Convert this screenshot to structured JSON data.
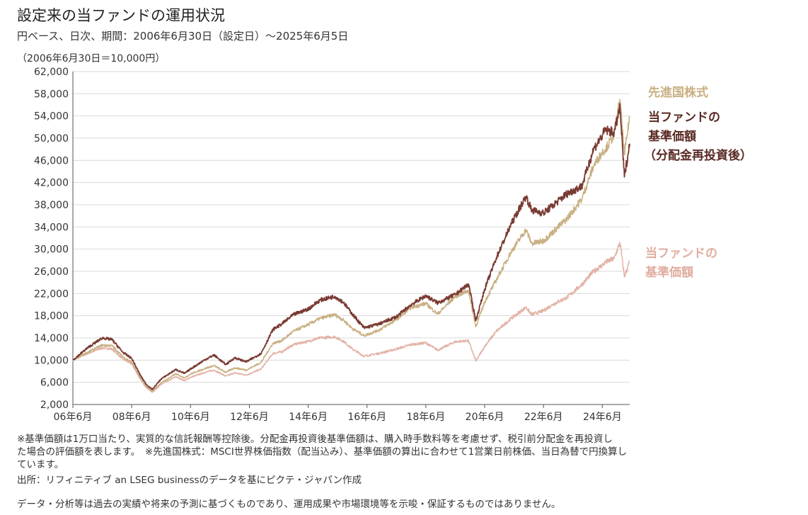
{
  "header": {
    "title": "設定来の当ファンドの運用状況",
    "subtitle": "円ベース、日次、期間：2006年6月30日（設定日）～2025年6月5日",
    "axis_note": "（2006年6月30日＝10,000円）"
  },
  "legend": {
    "developed_stocks": "先進国株式",
    "nav_reinvested_1": "当ファンドの",
    "nav_reinvested_2": "基準価額",
    "nav_reinvested_3": "（分配金再投資後）",
    "nav_1": "当ファンドの",
    "nav_2": "基準価額"
  },
  "colors": {
    "developed_stocks": "#c9b083",
    "nav_reinvested": "#7a3b33",
    "nav": "#e2b3a6",
    "grid": "#d9d9d9",
    "axis": "#555555"
  },
  "chart_data": {
    "type": "line",
    "title": "設定来の当ファンドの運用状況",
    "ylim": [
      2000,
      62000
    ],
    "y_ticks": [
      2000,
      6000,
      10000,
      14000,
      18000,
      22000,
      26000,
      30000,
      34000,
      38000,
      42000,
      46000,
      50000,
      54000,
      58000,
      62000
    ],
    "y_tick_labels": [
      "2,000",
      "6,000",
      "10,000",
      "14,000",
      "18,000",
      "22,000",
      "26,000",
      "30,000",
      "34,000",
      "38,000",
      "42,000",
      "46,000",
      "50,000",
      "54,000",
      "58,000",
      "62,000"
    ],
    "x_ticks": [
      2006.5,
      2008.5,
      2010.5,
      2012.5,
      2014.5,
      2016.5,
      2018.5,
      2020.5,
      2022.5,
      2024.5
    ],
    "x_tick_labels": [
      "06年6月",
      "08年6月",
      "10年6月",
      "12年6月",
      "14年6月",
      "16年6月",
      "18年6月",
      "20年6月",
      "22年6月",
      "24年6月"
    ],
    "xlim": [
      2006.5,
      2025.43
    ],
    "grid": "horizontal",
    "legend_position": "right",
    "series": [
      {
        "name": "当ファンドの基準価額",
        "key": "nav",
        "x": [
          2006.5,
          2007.0,
          2007.5,
          2007.83,
          2008.2,
          2008.5,
          2008.8,
          2009.0,
          2009.2,
          2009.5,
          2010.0,
          2010.3,
          2010.5,
          2011.0,
          2011.3,
          2011.7,
          2012.0,
          2012.4,
          2012.9,
          2013.3,
          2013.6,
          2014.0,
          2014.5,
          2014.9,
          2015.4,
          2015.7,
          2016.0,
          2016.4,
          2016.9,
          2017.5,
          2018.0,
          2018.5,
          2018.9,
          2019.5,
          2019.95,
          2020.2,
          2020.5,
          2020.9,
          2021.4,
          2021.9,
          2022.1,
          2022.5,
          2022.8,
          2023.3,
          2023.8,
          2024.2,
          2024.5,
          2024.6,
          2024.9,
          2025.1,
          2025.25,
          2025.43
        ],
        "y": [
          10000,
          11200,
          12200,
          12000,
          10200,
          9300,
          6500,
          5000,
          4200,
          5600,
          7000,
          6300,
          6900,
          7800,
          8200,
          7100,
          7700,
          7300,
          8400,
          11200,
          11500,
          12800,
          13400,
          14000,
          14200,
          13400,
          12000,
          10700,
          11200,
          12000,
          12800,
          13100,
          11800,
          13300,
          13500,
          9800,
          12500,
          15200,
          17500,
          19500,
          18200,
          18900,
          20000,
          21300,
          23600,
          26000,
          27100,
          27600,
          28300,
          31200,
          25000,
          27800
        ]
      },
      {
        "name": "先進国株式",
        "key": "developed_stocks",
        "x": [
          2006.5,
          2007.0,
          2007.5,
          2007.83,
          2008.2,
          2008.5,
          2008.8,
          2009.0,
          2009.2,
          2009.5,
          2010.0,
          2010.3,
          2010.5,
          2011.0,
          2011.3,
          2011.7,
          2012.0,
          2012.4,
          2012.9,
          2013.3,
          2013.6,
          2014.0,
          2014.5,
          2014.9,
          2015.4,
          2015.7,
          2016.0,
          2016.4,
          2016.9,
          2017.5,
          2018.0,
          2018.5,
          2018.9,
          2019.5,
          2019.95,
          2020.2,
          2020.5,
          2020.9,
          2021.4,
          2021.9,
          2022.1,
          2022.5,
          2022.8,
          2023.3,
          2023.8,
          2024.2,
          2024.5,
          2024.6,
          2024.9,
          2025.1,
          2025.25,
          2025.43
        ],
        "y": [
          10000,
          11400,
          12700,
          12600,
          10600,
          9600,
          6700,
          5200,
          4400,
          5900,
          7500,
          6800,
          7500,
          8500,
          9000,
          7800,
          8600,
          8200,
          9600,
          13000,
          13500,
          15200,
          16400,
          17500,
          18200,
          17200,
          15700,
          14400,
          15400,
          17300,
          19500,
          20200,
          18300,
          21500,
          22500,
          16000,
          20500,
          24500,
          29500,
          33500,
          31000,
          31500,
          33000,
          35500,
          39000,
          45000,
          47500,
          48000,
          50500,
          57000,
          47000,
          54000
        ]
      },
      {
        "name": "当ファンドの基準価額（分配金再投資後）",
        "key": "nav_reinvested",
        "x": [
          2006.5,
          2007.0,
          2007.5,
          2007.83,
          2008.2,
          2008.5,
          2008.8,
          2009.0,
          2009.2,
          2009.5,
          2010.0,
          2010.3,
          2010.5,
          2011.0,
          2011.3,
          2011.7,
          2012.0,
          2012.4,
          2012.9,
          2013.3,
          2013.6,
          2014.0,
          2014.5,
          2014.9,
          2015.4,
          2015.7,
          2016.0,
          2016.4,
          2016.9,
          2017.5,
          2018.0,
          2018.5,
          2018.9,
          2019.5,
          2019.95,
          2020.2,
          2020.5,
          2020.9,
          2021.4,
          2021.9,
          2022.1,
          2022.5,
          2022.8,
          2023.3,
          2023.8,
          2024.2,
          2024.5,
          2024.6,
          2024.9,
          2025.1,
          2025.25,
          2025.43
        ],
        "y": [
          10000,
          12200,
          14000,
          13700,
          11400,
          10300,
          7200,
          5600,
          4700,
          6600,
          8300,
          7600,
          8400,
          10100,
          10900,
          9200,
          10400,
          9700,
          11200,
          15500,
          16500,
          18200,
          19200,
          20800,
          21500,
          20400,
          18300,
          15800,
          16500,
          17800,
          20000,
          21600,
          20300,
          21800,
          23700,
          17100,
          22800,
          28500,
          34500,
          39500,
          37000,
          36500,
          37800,
          40000,
          41300,
          48000,
          50500,
          51500,
          51000,
          55500,
          43000,
          49000
        ]
      }
    ]
  },
  "footnotes": {
    "line1": "※基準価額は1万口当たり、実質的な信託報酬等控除後。分配金再投資後基準価額は、購入時手数料等を考慮せず、税引前分配金を再投資し",
    "line2": "た場合の評価額を表します。　※先進国株式：MSCI世界株価指数（配当込み）、基準価額の算出に合わせて1営業日前株価、当日為替で円換算し",
    "line3": "ています。",
    "source": "出所：リフィニティブ an LSEG businessのデータを基にピクテ・ジャパン作成"
  },
  "disclaimer": "データ・分析等は過去の実績や将来の予測に基づくものであり、運用成果や市場環境等を示唆・保証するものではありません。"
}
